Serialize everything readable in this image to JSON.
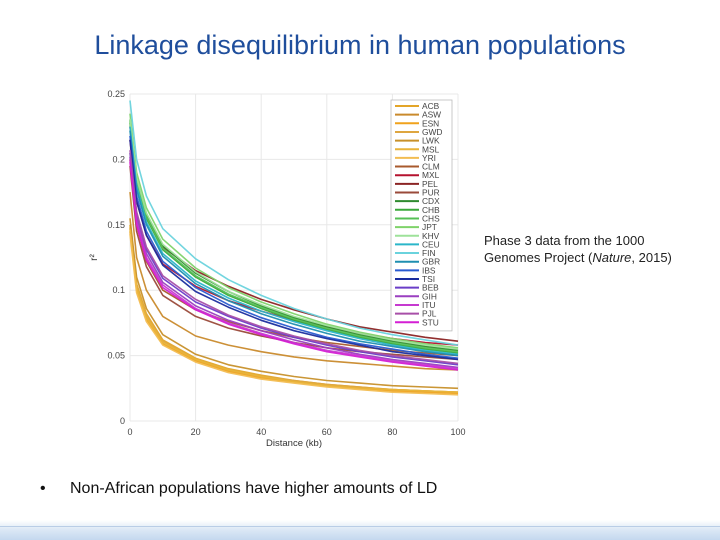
{
  "slide": {
    "title": "Linkage disequilibrium in human populations",
    "caption_pre": "Phase 3 data from the 1000 Genomes Project (",
    "caption_italic": "Nature",
    "caption_post": ", 2015)",
    "bullet": "Non-African populations have higher amounts of LD"
  },
  "chart_data": {
    "type": "line",
    "xlabel": "Distance (kb)",
    "ylabel": "r²",
    "xlim": [
      0,
      100
    ],
    "ylim": [
      0,
      0.25
    ],
    "xticks": [
      0,
      20,
      40,
      60,
      80,
      100
    ],
    "yticks": [
      0,
      0.05,
      0.1,
      0.15,
      0.2,
      0.25
    ],
    "legend_position": "top-right",
    "x": [
      0,
      2,
      5,
      10,
      20,
      30,
      40,
      50,
      60,
      70,
      80,
      90,
      100
    ],
    "series": [
      {
        "name": "ACB",
        "color": "#e3a528",
        "values": [
          0.15,
          0.105,
          0.082,
          0.062,
          0.048,
          0.04,
          0.035,
          0.031,
          0.028,
          0.026,
          0.024,
          0.023,
          0.022
        ]
      },
      {
        "name": "ASW",
        "color": "#c98a2c",
        "values": [
          0.175,
          0.125,
          0.1,
          0.08,
          0.065,
          0.058,
          0.053,
          0.049,
          0.046,
          0.044,
          0.042,
          0.04,
          0.039
        ]
      },
      {
        "name": "ESN",
        "color": "#f0a21c",
        "values": [
          0.145,
          0.1,
          0.078,
          0.059,
          0.046,
          0.038,
          0.033,
          0.03,
          0.027,
          0.025,
          0.023,
          0.022,
          0.021
        ]
      },
      {
        "name": "GWD",
        "color": "#dea640",
        "values": [
          0.148,
          0.103,
          0.08,
          0.061,
          0.047,
          0.039,
          0.034,
          0.031,
          0.028,
          0.026,
          0.024,
          0.023,
          0.022
        ]
      },
      {
        "name": "LWK",
        "color": "#c7902a",
        "values": [
          0.155,
          0.11,
          0.086,
          0.066,
          0.051,
          0.043,
          0.038,
          0.034,
          0.031,
          0.029,
          0.027,
          0.026,
          0.025
        ]
      },
      {
        "name": "MSL",
        "color": "#e8b43a",
        "values": [
          0.147,
          0.102,
          0.079,
          0.06,
          0.047,
          0.039,
          0.034,
          0.03,
          0.027,
          0.025,
          0.024,
          0.023,
          0.022
        ]
      },
      {
        "name": "YRI",
        "color": "#f2bd52",
        "values": [
          0.143,
          0.098,
          0.076,
          0.058,
          0.045,
          0.037,
          0.032,
          0.029,
          0.026,
          0.024,
          0.022,
          0.021,
          0.02
        ]
      },
      {
        "name": "CLM",
        "color": "#a85a2c",
        "values": [
          0.2,
          0.15,
          0.122,
          0.1,
          0.085,
          0.076,
          0.069,
          0.064,
          0.06,
          0.057,
          0.054,
          0.052,
          0.05
        ]
      },
      {
        "name": "MXL",
        "color": "#b5122f",
        "values": [
          0.215,
          0.168,
          0.142,
          0.12,
          0.103,
          0.092,
          0.084,
          0.077,
          0.072,
          0.067,
          0.063,
          0.06,
          0.058
        ]
      },
      {
        "name": "PEL",
        "color": "#8b2424",
        "values": [
          0.225,
          0.18,
          0.155,
          0.133,
          0.115,
          0.103,
          0.093,
          0.085,
          0.078,
          0.072,
          0.068,
          0.064,
          0.061
        ]
      },
      {
        "name": "PUR",
        "color": "#9a4a3a",
        "values": [
          0.195,
          0.145,
          0.118,
          0.096,
          0.08,
          0.071,
          0.065,
          0.06,
          0.056,
          0.053,
          0.051,
          0.049,
          0.047
        ]
      },
      {
        "name": "CDX",
        "color": "#2f8a2f",
        "values": [
          0.23,
          0.185,
          0.158,
          0.134,
          0.113,
          0.099,
          0.088,
          0.079,
          0.072,
          0.066,
          0.061,
          0.057,
          0.054
        ]
      },
      {
        "name": "CHB",
        "color": "#3aa83a",
        "values": [
          0.228,
          0.182,
          0.155,
          0.131,
          0.11,
          0.096,
          0.086,
          0.077,
          0.07,
          0.064,
          0.059,
          0.055,
          0.052
        ]
      },
      {
        "name": "CHS",
        "color": "#55c055",
        "values": [
          0.229,
          0.183,
          0.156,
          0.132,
          0.111,
          0.097,
          0.087,
          0.078,
          0.071,
          0.065,
          0.06,
          0.056,
          0.053
        ]
      },
      {
        "name": "JPT",
        "color": "#7fd36a",
        "values": [
          0.235,
          0.19,
          0.163,
          0.139,
          0.117,
          0.102,
          0.091,
          0.082,
          0.074,
          0.068,
          0.063,
          0.059,
          0.056
        ]
      },
      {
        "name": "KHV",
        "color": "#9ee29a",
        "values": [
          0.231,
          0.186,
          0.159,
          0.135,
          0.114,
          0.099,
          0.089,
          0.08,
          0.073,
          0.067,
          0.062,
          0.058,
          0.055
        ]
      },
      {
        "name": "CEU",
        "color": "#2bb6c9",
        "values": [
          0.225,
          0.18,
          0.152,
          0.128,
          0.107,
          0.094,
          0.084,
          0.076,
          0.069,
          0.063,
          0.058,
          0.054,
          0.051
        ]
      },
      {
        "name": "FIN",
        "color": "#6ad3dd",
        "values": [
          0.245,
          0.2,
          0.172,
          0.147,
          0.124,
          0.108,
          0.096,
          0.086,
          0.078,
          0.071,
          0.066,
          0.062,
          0.058
        ]
      },
      {
        "name": "GBR",
        "color": "#1f8fb0",
        "values": [
          0.222,
          0.177,
          0.15,
          0.126,
          0.105,
          0.092,
          0.082,
          0.074,
          0.067,
          0.061,
          0.057,
          0.053,
          0.05
        ]
      },
      {
        "name": "IBS",
        "color": "#2a5bd0",
        "values": [
          0.218,
          0.172,
          0.145,
          0.122,
          0.102,
          0.089,
          0.079,
          0.071,
          0.064,
          0.059,
          0.055,
          0.051,
          0.048
        ]
      },
      {
        "name": "TSI",
        "color": "#1a2d9e",
        "values": [
          0.215,
          0.168,
          0.142,
          0.119,
          0.099,
          0.087,
          0.077,
          0.069,
          0.063,
          0.058,
          0.053,
          0.05,
          0.047
        ]
      },
      {
        "name": "BEB",
        "color": "#6a3ec8",
        "values": [
          0.205,
          0.158,
          0.131,
          0.109,
          0.091,
          0.08,
          0.071,
          0.064,
          0.058,
          0.053,
          0.049,
          0.046,
          0.043
        ]
      },
      {
        "name": "GIH",
        "color": "#9a3fc0",
        "values": [
          0.202,
          0.155,
          0.128,
          0.106,
          0.088,
          0.077,
          0.069,
          0.062,
          0.056,
          0.051,
          0.047,
          0.044,
          0.041
        ]
      },
      {
        "name": "ITU",
        "color": "#c63ad0",
        "values": [
          0.2,
          0.152,
          0.125,
          0.104,
          0.086,
          0.075,
          0.067,
          0.06,
          0.054,
          0.05,
          0.046,
          0.043,
          0.04
        ]
      },
      {
        "name": "PJL",
        "color": "#a84fa8",
        "values": [
          0.207,
          0.16,
          0.133,
          0.111,
          0.093,
          0.081,
          0.072,
          0.065,
          0.059,
          0.054,
          0.05,
          0.047,
          0.044
        ]
      },
      {
        "name": "STU",
        "color": "#d41fd4",
        "values": [
          0.198,
          0.15,
          0.123,
          0.102,
          0.085,
          0.074,
          0.066,
          0.059,
          0.053,
          0.049,
          0.045,
          0.042,
          0.039
        ]
      }
    ]
  }
}
